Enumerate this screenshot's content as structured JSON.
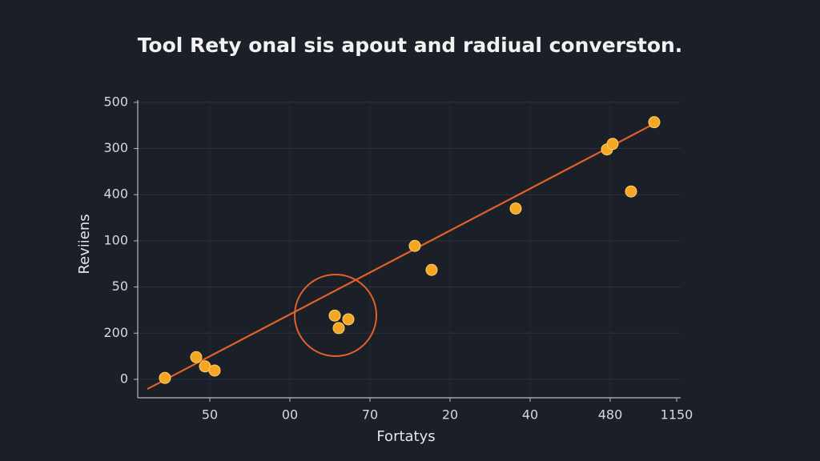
{
  "chart_data": {
    "type": "scatter",
    "title": "Tool Rety onal sis apout and radiual converston.",
    "x_label": "Fortatys",
    "y_label": "Reviiens",
    "x": [
      0.44,
      0.83,
      0.94,
      1.06,
      2.56,
      2.61,
      2.73,
      3.56,
      3.77,
      4.82,
      5.96,
      6.03,
      6.26,
      6.55
    ],
    "values": [
      0.03,
      0.48,
      0.28,
      0.19,
      1.38,
      1.11,
      1.3,
      2.89,
      2.37,
      3.7,
      4.98,
      5.1,
      4.07,
      5.57
    ],
    "color": "#f5a623",
    "trendline": {
      "x": [
        0.22,
        6.53
      ],
      "y": [
        -0.21,
        5.52
      ],
      "color": "#e0622a"
    },
    "xlim": [
      0.1,
      6.88
    ],
    "ylim": [
      -0.4,
      6.05
    ],
    "xticks": [
      {
        "value": 1,
        "label": "50"
      },
      {
        "value": 2,
        "label": "00"
      },
      {
        "value": 3,
        "label": "70"
      },
      {
        "value": 4,
        "label": "20"
      },
      {
        "value": 5,
        "label": "40"
      },
      {
        "value": 6,
        "label": "480"
      },
      {
        "value": 6.83,
        "label": "1150"
      }
    ],
    "yticks": [
      {
        "value": 0,
        "label": "0"
      },
      {
        "value": 1,
        "label": "200"
      },
      {
        "value": 2,
        "label": "50"
      },
      {
        "value": 3,
        "label": "100"
      },
      {
        "value": 4,
        "label": "400"
      },
      {
        "value": 5,
        "label": "300"
      },
      {
        "value": 6,
        "label": "500"
      }
    ],
    "grid": true
  }
}
